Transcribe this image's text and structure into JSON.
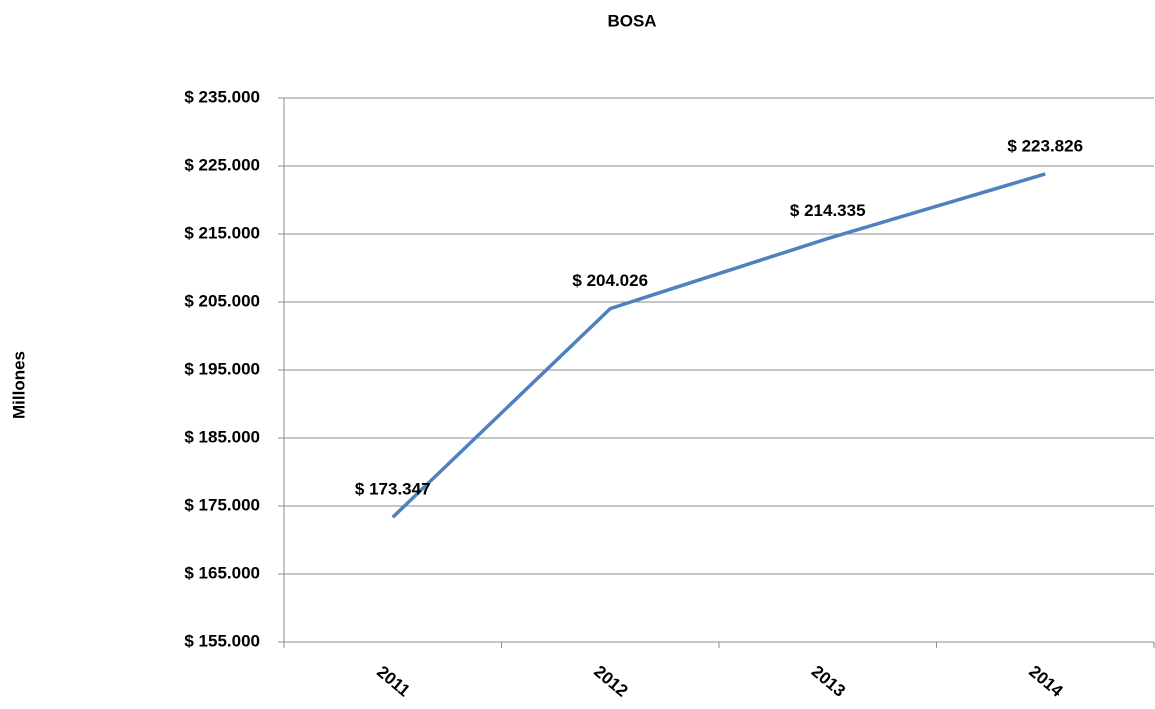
{
  "chart_data": {
    "type": "line",
    "title": "BOSA",
    "y_label": "Millones",
    "categories": [
      "2011",
      "2012",
      "2013",
      "2014"
    ],
    "series": [
      {
        "name": "BOSA",
        "color": "#4f81bd",
        "values": [
          173347,
          204026,
          214335,
          223826
        ],
        "value_labels": [
          "$ 173.347",
          "$ 204.026",
          "$ 214.335",
          "$ 223.826"
        ]
      }
    ],
    "ylim": [
      155000,
      235000
    ],
    "yticks": [
      {
        "value": 155000,
        "label": "$ 155.000"
      },
      {
        "value": 165000,
        "label": "$ 165.000"
      },
      {
        "value": 175000,
        "label": "$ 175.000"
      },
      {
        "value": 185000,
        "label": "$ 185.000"
      },
      {
        "value": 195000,
        "label": "$ 195.000"
      },
      {
        "value": 205000,
        "label": "$ 205.000"
      },
      {
        "value": 215000,
        "label": "$ 215.000"
      },
      {
        "value": 225000,
        "label": "$ 225.000"
      },
      {
        "value": 235000,
        "label": "$ 235.000"
      }
    ],
    "grid": true
  }
}
